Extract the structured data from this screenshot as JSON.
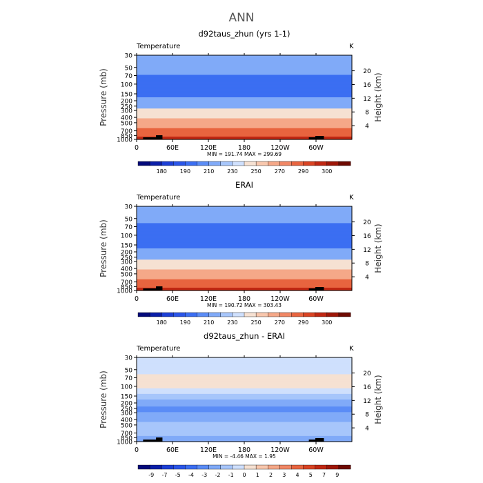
{
  "figure_title": "ANN",
  "colors": {
    "abs_scale": [
      "#040a7a",
      "#0a1ea8",
      "#1c3fd6",
      "#2a55e8",
      "#3b6ef2",
      "#5a8cf6",
      "#80aaf8",
      "#a7c6fb",
      "#cfe0fd",
      "#f6e1d2",
      "#f8c7ad",
      "#f5a888",
      "#f18765",
      "#e8643f",
      "#d94323",
      "#c02712",
      "#9e1608",
      "#6e0a02"
    ],
    "diff_scale": [
      "#040a7a",
      "#0a1ea8",
      "#1c3fd6",
      "#2a55e8",
      "#3b6ef2",
      "#5a8cf6",
      "#80aaf8",
      "#a7c6fb",
      "#cfe0fd",
      "#f6e1d2",
      "#f8c7ad",
      "#f5a888",
      "#f18765",
      "#e8643f",
      "#d94323",
      "#c02712",
      "#9e1608",
      "#6e0a02"
    ],
    "topography": "#000000"
  },
  "chart_data": [
    {
      "type": "heatmap",
      "title": "d92taus_zhun (yrs 1-1)",
      "left_label": "Temperature",
      "right_label": "K",
      "xlabel": "",
      "ylabel": "Pressure (mb)",
      "ylabel_right": "Height (km)",
      "x_ticks": [
        "0",
        "60E",
        "120E",
        "180",
        "120W",
        "60W"
      ],
      "x_tick_values": [
        0,
        60,
        120,
        180,
        240,
        300
      ],
      "xlim": [
        0,
        360
      ],
      "y_ticks": [
        "30",
        "50",
        "70",
        "100",
        "150",
        "200",
        "250",
        "300",
        "400",
        "500",
        "700",
        "850",
        "1000"
      ],
      "y_tick_values": [
        30,
        50,
        70,
        100,
        150,
        200,
        250,
        300,
        400,
        500,
        700,
        850,
        1000
      ],
      "ylim": [
        1000,
        30
      ],
      "y_scale": "log",
      "height_ticks": [
        "4",
        "8",
        "12",
        "16",
        "20"
      ],
      "height_tick_values": [
        4,
        8,
        12,
        16,
        20
      ],
      "stats": "MIN = 191.74   MAX = 299.69",
      "levels": [
        180,
        190,
        210,
        230,
        250,
        270,
        290,
        300
      ],
      "colorbar_labels": [
        "180",
        "190",
        "210",
        "230",
        "250",
        "270",
        "290",
        "300"
      ],
      "profile": [
        {
          "p": 30,
          "v": 225
        },
        {
          "p": 50,
          "v": 217
        },
        {
          "p": 70,
          "v": 210
        },
        {
          "p": 100,
          "v": 201
        },
        {
          "p": 150,
          "v": 205
        },
        {
          "p": 200,
          "v": 215
        },
        {
          "p": 250,
          "v": 225
        },
        {
          "p": 300,
          "v": 233
        },
        {
          "p": 400,
          "v": 247
        },
        {
          "p": 500,
          "v": 258
        },
        {
          "p": 700,
          "v": 275
        },
        {
          "p": 850,
          "v": 285
        },
        {
          "p": 1000,
          "v": 297
        }
      ]
    },
    {
      "type": "heatmap",
      "title": "ERAI",
      "left_label": "Temperature",
      "right_label": "K",
      "xlabel": "",
      "ylabel": "Pressure (mb)",
      "ylabel_right": "Height (km)",
      "x_ticks": [
        "0",
        "60E",
        "120E",
        "180",
        "120W",
        "60W"
      ],
      "x_tick_values": [
        0,
        60,
        120,
        180,
        240,
        300
      ],
      "xlim": [
        0,
        360
      ],
      "y_ticks": [
        "30",
        "50",
        "70",
        "100",
        "150",
        "200",
        "250",
        "300",
        "400",
        "500",
        "700",
        "850",
        "1000"
      ],
      "y_tick_values": [
        30,
        50,
        70,
        100,
        150,
        200,
        250,
        300,
        400,
        500,
        700,
        850,
        1000
      ],
      "ylim": [
        1000,
        30
      ],
      "y_scale": "log",
      "height_ticks": [
        "4",
        "8",
        "12",
        "16",
        "20"
      ],
      "height_tick_values": [
        4,
        8,
        12,
        16,
        20
      ],
      "stats": "MIN = 190.72   MAX = 303.43",
      "levels": [
        180,
        190,
        210,
        230,
        250,
        270,
        290,
        300
      ],
      "colorbar_labels": [
        "180",
        "190",
        "210",
        "230",
        "250",
        "270",
        "290",
        "300"
      ],
      "profile": [
        {
          "p": 30,
          "v": 222
        },
        {
          "p": 50,
          "v": 214
        },
        {
          "p": 70,
          "v": 207
        },
        {
          "p": 100,
          "v": 199
        },
        {
          "p": 150,
          "v": 205
        },
        {
          "p": 200,
          "v": 214
        },
        {
          "p": 250,
          "v": 225
        },
        {
          "p": 300,
          "v": 234
        },
        {
          "p": 400,
          "v": 249
        },
        {
          "p": 500,
          "v": 260
        },
        {
          "p": 700,
          "v": 277
        },
        {
          "p": 850,
          "v": 287
        },
        {
          "p": 1000,
          "v": 298
        }
      ]
    },
    {
      "type": "heatmap",
      "title": "d92taus_zhun - ERAI",
      "left_label": "Temperature",
      "right_label": "K",
      "xlabel": "",
      "ylabel": "Pressure (mb)",
      "ylabel_right": "Height (km)",
      "x_ticks": [
        "0",
        "60E",
        "120E",
        "180",
        "120W",
        "60W"
      ],
      "x_tick_values": [
        0,
        60,
        120,
        180,
        240,
        300
      ],
      "xlim": [
        0,
        360
      ],
      "y_ticks": [
        "30",
        "50",
        "70",
        "100",
        "150",
        "200",
        "250",
        "300",
        "400",
        "500",
        "700",
        "850",
        "1000"
      ],
      "y_tick_values": [
        30,
        50,
        70,
        100,
        150,
        200,
        250,
        300,
        400,
        500,
        700,
        850,
        1000
      ],
      "ylim": [
        1000,
        30
      ],
      "y_scale": "log",
      "height_ticks": [
        "4",
        "8",
        "12",
        "16",
        "20"
      ],
      "height_tick_values": [
        4,
        8,
        12,
        16,
        20
      ],
      "stats": "MIN =   -4.46   MAX =    1.95",
      "levels": [
        -9,
        -7,
        -5,
        -4,
        -3,
        -2,
        -1,
        0,
        1,
        2,
        3,
        4,
        5,
        7,
        9
      ],
      "colorbar_labels": [
        "-9",
        "-7",
        "-5",
        "-4",
        "-3",
        "-2",
        "-1",
        "0",
        "1",
        "2",
        "3",
        "4",
        "5",
        "7",
        "9"
      ],
      "profile": [
        {
          "p": 30,
          "v": -0.5
        },
        {
          "p": 50,
          "v": -0.8
        },
        {
          "p": 70,
          "v": 0.6
        },
        {
          "p": 100,
          "v": 0.4
        },
        {
          "p": 150,
          "v": -1.5
        },
        {
          "p": 200,
          "v": -2.5
        },
        {
          "p": 250,
          "v": -3.2
        },
        {
          "p": 300,
          "v": -3.0
        },
        {
          "p": 400,
          "v": -2.4
        },
        {
          "p": 500,
          "v": -1.6
        },
        {
          "p": 700,
          "v": -1.4
        },
        {
          "p": 850,
          "v": -2.2
        },
        {
          "p": 1000,
          "v": -2.6
        }
      ]
    }
  ]
}
